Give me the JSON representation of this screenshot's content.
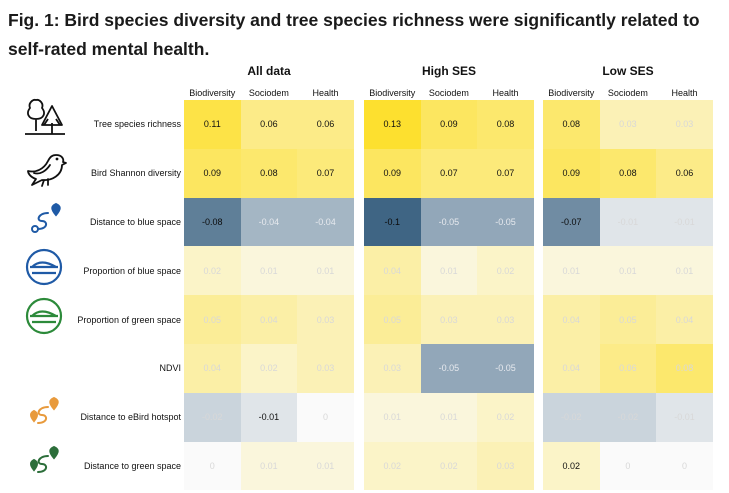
{
  "title": "Fig. 1: Bird species diversity and tree species richness were significantly related to self-rated mental health.",
  "chart_data": {
    "type": "heatmap",
    "title": "Fig. 1: Bird species diversity and tree species richness were significantly related to self-rated mental health.",
    "rows": [
      {
        "label": "Tree species richness",
        "icon": "trees-icon"
      },
      {
        "label": "Bird Shannon diversity",
        "icon": "bird-icon"
      },
      {
        "label": "Distance to blue space",
        "icon": "route-blue-icon"
      },
      {
        "label": "Proportion of blue space",
        "icon": "blue-circle-icon"
      },
      {
        "label": "Proportion of green space",
        "icon": "green-circle-icon"
      },
      {
        "label": "NDVI",
        "icon": ""
      },
      {
        "label": "Distance to eBird hotspot",
        "icon": "route-orange-icon"
      },
      {
        "label": "Distance to green space",
        "icon": "route-green-icon"
      }
    ],
    "columns": [
      "Biodiversity",
      "Sociodem",
      "Health"
    ],
    "panels": [
      {
        "title": "All data",
        "values": [
          [
            0.11,
            0.06,
            0.06
          ],
          [
            0.09,
            0.08,
            0.07
          ],
          [
            -0.08,
            -0.04,
            -0.04
          ],
          [
            0.02,
            0.01,
            0.01
          ],
          [
            0.05,
            0.04,
            0.03
          ],
          [
            0.04,
            0.02,
            0.03
          ],
          [
            -0.02,
            -0.01,
            0
          ],
          [
            0,
            0.01,
            0.01
          ]
        ],
        "labels": [
          [
            "0.11",
            "0.06",
            "0.06"
          ],
          [
            "0.09",
            "0.08",
            "0.07"
          ],
          [
            "-0.08",
            "-0.04",
            "-0.04"
          ],
          [
            "0.02",
            "0.01",
            "0.01"
          ],
          [
            "0.05",
            "0.04",
            "0.03"
          ],
          [
            "0.04",
            "0.02",
            "0.03"
          ],
          [
            "-0.02",
            "-0.01",
            "0"
          ],
          [
            "0",
            "0.01",
            "0.01"
          ]
        ],
        "significant": [
          [
            true,
            true,
            true
          ],
          [
            true,
            true,
            true
          ],
          [
            true,
            false,
            false
          ],
          [
            false,
            false,
            false
          ],
          [
            false,
            false,
            false
          ],
          [
            false,
            false,
            false
          ],
          [
            false,
            true,
            false
          ],
          [
            false,
            false,
            false
          ]
        ]
      },
      {
        "title": "High SES",
        "values": [
          [
            0.13,
            0.09,
            0.08
          ],
          [
            0.09,
            0.07,
            0.07
          ],
          [
            -0.1,
            -0.05,
            -0.05
          ],
          [
            0.04,
            0.01,
            0.02
          ],
          [
            0.05,
            0.03,
            0.03
          ],
          [
            0.03,
            -0.05,
            -0.05
          ],
          [
            0.01,
            0.01,
            0.02
          ],
          [
            0.02,
            0.02,
            0.03
          ]
        ],
        "labels": [
          [
            "0.13",
            "0.09",
            "0.08"
          ],
          [
            "0.09",
            "0.07",
            "0.07"
          ],
          [
            "-0.1",
            "-0.05",
            "-0.05"
          ],
          [
            "0.04",
            "0.01",
            "0.02"
          ],
          [
            "0.05",
            "0.03",
            "0.03"
          ],
          [
            "0.03",
            "-0.05",
            "-0.05"
          ],
          [
            "0.01",
            "0.01",
            "0.02"
          ],
          [
            "0.02",
            "0.02",
            "0.03"
          ]
        ],
        "significant": [
          [
            true,
            true,
            true
          ],
          [
            true,
            true,
            true
          ],
          [
            true,
            false,
            false
          ],
          [
            false,
            false,
            false
          ],
          [
            false,
            false,
            false
          ],
          [
            false,
            false,
            false
          ],
          [
            false,
            false,
            false
          ],
          [
            false,
            false,
            false
          ]
        ]
      },
      {
        "title": "Low SES",
        "values": [
          [
            0.08,
            0.03,
            0.03
          ],
          [
            0.09,
            0.08,
            0.06
          ],
          [
            -0.07,
            -0.01,
            -0.01
          ],
          [
            0.01,
            0.01,
            0.01
          ],
          [
            0.04,
            0.05,
            0.04
          ],
          [
            0.04,
            0.06,
            0.08
          ],
          [
            -0.02,
            -0.02,
            -0.01
          ],
          [
            0.02,
            0,
            0
          ]
        ],
        "labels": [
          [
            "0.08",
            "0.03",
            "0.03"
          ],
          [
            "0.09",
            "0.08",
            "0.06"
          ],
          [
            "-0.07",
            "-0.01",
            "-0.01"
          ],
          [
            "0.01",
            "0.01",
            "0.01"
          ],
          [
            "0.04",
            "0.05",
            "0.04"
          ],
          [
            "0.04",
            "0.06",
            "0.08"
          ],
          [
            "-0.02",
            "-0.02",
            "-0.01"
          ],
          [
            "0.02",
            "0",
            "0"
          ]
        ],
        "significant": [
          [
            true,
            false,
            false
          ],
          [
            true,
            true,
            true
          ],
          [
            true,
            false,
            false
          ],
          [
            false,
            false,
            false
          ],
          [
            false,
            false,
            false
          ],
          [
            false,
            false,
            false
          ],
          [
            false,
            false,
            false
          ],
          [
            true,
            false,
            false
          ]
        ]
      }
    ],
    "colors": {
      "positive_max": "#fde02f",
      "negative_max": "#3f6584",
      "zero": "#fafafa",
      "significant_text": "#111111",
      "nonsignificant_text": "#d8d8d8"
    },
    "color_scale_range": [
      -0.1,
      0.13
    ]
  }
}
